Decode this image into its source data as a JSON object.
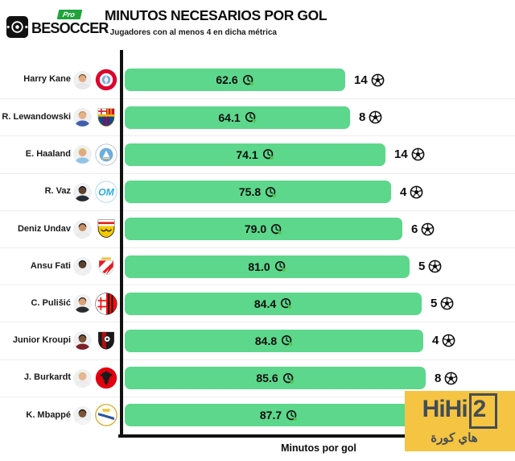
{
  "header": {
    "brand_name": "BESOCCER",
    "brand_badge": "Pro",
    "title": "MINUTOS NECESARIOS POR GOL",
    "subtitle": "* Jugadores con al menos 4 en dicha métrica"
  },
  "chart_data": {
    "type": "bar",
    "orientation": "horizontal",
    "title": "MINUTOS NECESARIOS POR GOL",
    "xlabel": "Minutos por gol",
    "xlim": [
      0,
      110
    ],
    "grid": false,
    "bar_color": "#5cd78c",
    "axis_color": "#111111",
    "value_icon": "clock-icon",
    "goals_icon": "soccer-ball-icon",
    "rows": [
      {
        "player": "Harry Kane",
        "club": "Bayern München",
        "crest": "bayern",
        "minutes": "62.6",
        "goals": "14",
        "avatar": {
          "skin": "#e3ac85",
          "hair": "#7a5c3e",
          "shirt": "#e8e8ea"
        }
      },
      {
        "player": "R. Lewandowski",
        "club": "Barcelona",
        "crest": "barcelona",
        "minutes": "64.1",
        "goals": "8",
        "avatar": {
          "skin": "#e6b28a",
          "hair": "#c2995c",
          "shirt": "#3f5fae"
        }
      },
      {
        "player": "E. Haaland",
        "club": "Manchester City",
        "crest": "mancity",
        "minutes": "74.1",
        "goals": "14",
        "avatar": {
          "skin": "#e2a87f",
          "hair": "#d9c06e",
          "shirt": "#8fc4e8"
        }
      },
      {
        "player": "R. Vaz",
        "club": "Marseille",
        "crest": "marseille",
        "minutes": "75.8",
        "goals": "4",
        "avatar": {
          "skin": "#5f4330",
          "hair": "#15151a",
          "shirt": "#232a33"
        }
      },
      {
        "player": "Deniz Undav",
        "club": "Stuttgart",
        "crest": "stuttgart",
        "minutes": "79.0",
        "goals": "6",
        "avatar": {
          "skin": "#c78f63",
          "hair": "#1b1b1b",
          "shirt": "#ededed"
        }
      },
      {
        "player": "Ansu Fati",
        "club": "Monaco",
        "crest": "monaco",
        "minutes": "81.0",
        "goals": "5",
        "avatar": {
          "skin": "#5c402e",
          "hair": "#141414",
          "shirt": "#f0f0f0"
        }
      },
      {
        "player": "C. Pulišić",
        "club": "Milan",
        "crest": "milan",
        "minutes": "84.4",
        "goals": "5",
        "avatar": {
          "skin": "#d8a378",
          "hair": "#3a2d21",
          "shirt": "#2b2b2e"
        }
      },
      {
        "player": "Junior Kroupi",
        "club": "Bournemouth",
        "crest": "bournemouth",
        "minutes": "84.8",
        "goals": "4",
        "avatar": {
          "skin": "#7a553a",
          "hair": "#141414",
          "shirt": "#7c2026"
        }
      },
      {
        "player": "J. Burkardt",
        "club": "Eintracht Frankfurt",
        "crest": "frankfurt",
        "minutes": "85.6",
        "goals": "8",
        "avatar": {
          "skin": "#e7b793",
          "hair": "#d6bd79",
          "shirt": "#efefef"
        }
      },
      {
        "player": "K. Mbappé",
        "club": "Real Madrid",
        "crest": "realmadrid",
        "minutes": "87.7",
        "goals": null,
        "avatar": {
          "skin": "#7c5638",
          "hair": "#141414",
          "shirt": "#f5f5f5"
        }
      }
    ]
  },
  "watermark": {
    "brand_prefix": "HiHi",
    "brand_boxed": "2",
    "tagline": "هاي كورة",
    "bg_color": "#f5c442",
    "text_color": "#454d53"
  }
}
